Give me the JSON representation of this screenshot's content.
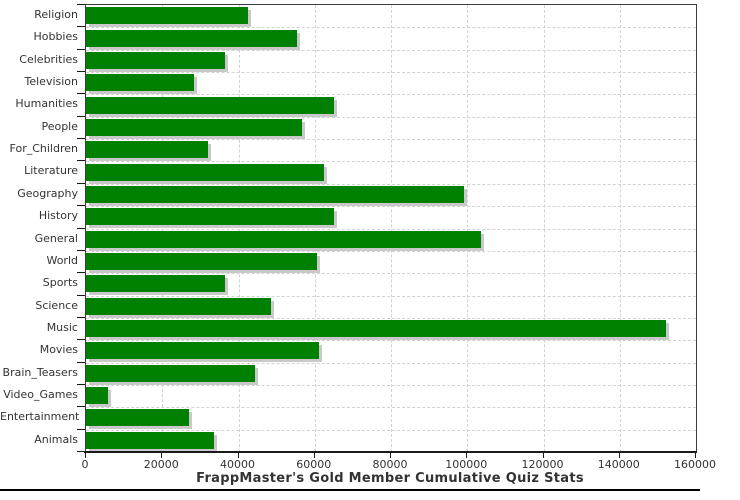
{
  "chart_data": {
    "type": "bar",
    "orientation": "horizontal",
    "title": "FrappMaster's Gold Member Cumulative Quiz Stats",
    "categories": [
      "Religion",
      "Hobbies",
      "Celebrities",
      "Television",
      "Humanities",
      "People",
      "For_Children",
      "Literature",
      "Geography",
      "History",
      "General",
      "World",
      "Sports",
      "Science",
      "Music",
      "Movies",
      "Brain_Teasers",
      "Video_Games",
      "Entertainment",
      "Animals"
    ],
    "values": [
      42600,
      55300,
      36500,
      28400,
      65000,
      56600,
      31900,
      62300,
      99100,
      65000,
      103600,
      60500,
      36500,
      48500,
      152000,
      61200,
      44400,
      5700,
      26900,
      33500
    ],
    "xlim": [
      0,
      160000
    ],
    "xticks": [
      0,
      20000,
      40000,
      60000,
      80000,
      100000,
      120000,
      140000,
      160000
    ],
    "grid": true,
    "legend": "none",
    "bar_color": "#008000",
    "shadow_color": "#c9c9c9",
    "grid_color": "#d2d2d2",
    "axis_color": "#1a1a1a",
    "text_color": "#333333"
  }
}
